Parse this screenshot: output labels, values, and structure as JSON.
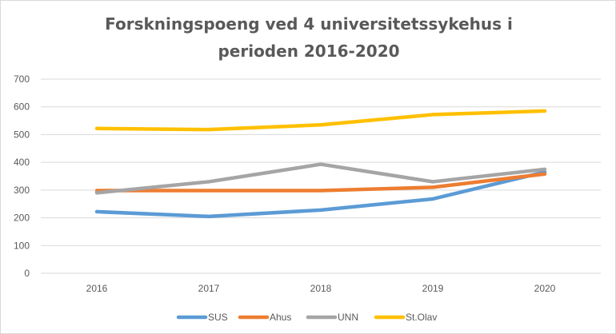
{
  "chart_data": {
    "type": "line",
    "title_lines": [
      "Forskningspoeng  ved 4 universitetssykehus  i",
      "perioden  2016-2020"
    ],
    "x": [
      "2016",
      "2017",
      "2018",
      "2019",
      "2020"
    ],
    "y_ticks": [
      "0",
      "100",
      "200",
      "300",
      "400",
      "500",
      "600",
      "700"
    ],
    "ylim": [
      0,
      700
    ],
    "grid": true,
    "legend_position": "bottom",
    "series": [
      {
        "name": "SUS",
        "color": "#5b9bd5",
        "values": [
          222,
          205,
          228,
          268,
          365
        ]
      },
      {
        "name": "Ahus",
        "color": "#ed7d31",
        "values": [
          298,
          298,
          298,
          310,
          358
        ]
      },
      {
        "name": "UNN",
        "color": "#a5a5a5",
        "values": [
          290,
          330,
          393,
          330,
          375
        ]
      },
      {
        "name": "St.Olav",
        "color": "#ffc000",
        "values": [
          522,
          518,
          535,
          572,
          585
        ]
      }
    ]
  }
}
